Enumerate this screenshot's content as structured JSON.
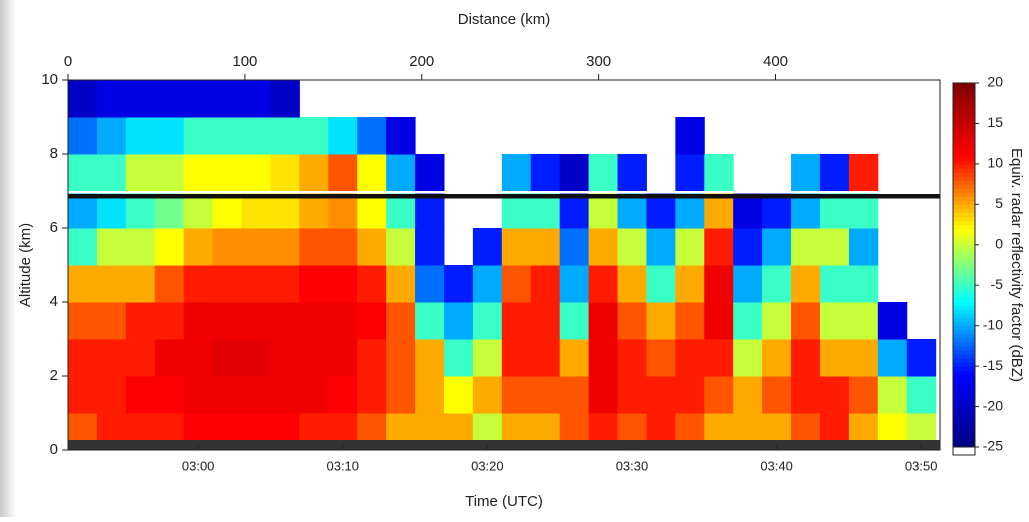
{
  "chart_data": {
    "type": "heatmap",
    "xlabel": "Time (UTC)",
    "x2label": "Distance (km)",
    "ylabel": "Altitude (km)",
    "colorbar_label": "Equiv. radar reflectivity factor (dBZ)",
    "xlim": [
      171,
      231.3
    ],
    "xticks": [
      {
        "value": 180,
        "label": "03:00"
      },
      {
        "value": 190,
        "label": "03:10"
      },
      {
        "value": 200,
        "label": "03:20"
      },
      {
        "value": 210,
        "label": "03:30"
      },
      {
        "value": 220,
        "label": "03:40"
      },
      {
        "value": 230,
        "label": "03:50"
      }
    ],
    "x2lim": [
      0,
      493
    ],
    "x2ticks": [
      0,
      100,
      200,
      300,
      400
    ],
    "ylim": [
      0,
      10
    ],
    "yticks": [
      0,
      2,
      4,
      6,
      8,
      10
    ],
    "clim": [
      -25,
      20
    ],
    "cticks": [
      -25,
      -20,
      -15,
      -10,
      -5,
      0,
      5,
      10,
      15,
      20
    ],
    "colormap": [
      "#00007f",
      "#0000ff",
      "#00ffff",
      "#ffff00",
      "#ff0000",
      "#7f0000"
    ],
    "under_color": "#ffffff",
    "x_bins": [
      171,
      173,
      175,
      177,
      179,
      181,
      183,
      185,
      187,
      189,
      191,
      193,
      195,
      197,
      199,
      201,
      203,
      205,
      207,
      209,
      211,
      213,
      215,
      217,
      219,
      221,
      223,
      225,
      227,
      229,
      231
    ],
    "y_bins": [
      0,
      1,
      2,
      3,
      4,
      5,
      6,
      7,
      8,
      9,
      10
    ],
    "values": [
      [
        8,
        10,
        10,
        10,
        11,
        11,
        11,
        11,
        10,
        10,
        8,
        5,
        5,
        5,
        0,
        5,
        5,
        8,
        10,
        8,
        10,
        8,
        5,
        5,
        5,
        8,
        10,
        5,
        2,
        0
      ],
      [
        10,
        10,
        11,
        11,
        12,
        12,
        12,
        12,
        12,
        11,
        10,
        8,
        5,
        2,
        5,
        8,
        8,
        8,
        12,
        10,
        10,
        10,
        8,
        5,
        8,
        10,
        10,
        8,
        0,
        -5
      ],
      [
        10,
        10,
        10,
        12,
        12,
        13,
        13,
        12,
        12,
        12,
        10,
        8,
        5,
        -5,
        0,
        10,
        10,
        5,
        12,
        10,
        8,
        10,
        10,
        0,
        5,
        10,
        5,
        5,
        -10,
        -15
      ],
      [
        8,
        8,
        10,
        10,
        12,
        12,
        12,
        12,
        12,
        12,
        11,
        8,
        -5,
        -10,
        -5,
        10,
        10,
        -5,
        12,
        8,
        5,
        8,
        12,
        -5,
        0,
        8,
        0,
        0,
        -18,
        null
      ],
      [
        5,
        5,
        5,
        8,
        10,
        10,
        10,
        10,
        11,
        11,
        10,
        5,
        -12,
        -15,
        -10,
        8,
        10,
        -10,
        10,
        5,
        -5,
        5,
        12,
        -10,
        -5,
        5,
        -5,
        -5,
        null,
        null
      ],
      [
        -5,
        0,
        0,
        2,
        5,
        6,
        6,
        6,
        8,
        8,
        5,
        0,
        -15,
        null,
        -15,
        5,
        5,
        -12,
        5,
        0,
        -10,
        0,
        10,
        -15,
        -10,
        0,
        0,
        -10,
        null,
        null
      ],
      [
        -10,
        -8,
        -5,
        -3,
        0,
        2,
        3,
        3,
        5,
        6,
        2,
        -5,
        -15,
        null,
        null,
        -5,
        -5,
        -15,
        0,
        -10,
        -15,
        -10,
        5,
        -18,
        -15,
        -10,
        -5,
        -5,
        null,
        null
      ],
      [
        -5,
        -5,
        0,
        0,
        2,
        2,
        2,
        3,
        5,
        8,
        2,
        -10,
        -18,
        null,
        null,
        -10,
        -15,
        -20,
        -5,
        -15,
        null,
        -15,
        -5,
        null,
        null,
        -10,
        -15,
        10,
        null,
        null
      ],
      [
        -12,
        -10,
        -8,
        -8,
        -5,
        -5,
        -5,
        -5,
        -5,
        -8,
        -12,
        -18,
        null,
        null,
        null,
        null,
        null,
        null,
        null,
        null,
        null,
        -18,
        null,
        null,
        null,
        null,
        null,
        null,
        null,
        null
      ],
      [
        -20,
        -18,
        -18,
        -18,
        -18,
        -18,
        -18,
        -20,
        null,
        null,
        null,
        null,
        null,
        null,
        null,
        null,
        null,
        null,
        null,
        null,
        null,
        null,
        null,
        null,
        null,
        null,
        null,
        null,
        null,
        null
      ]
    ]
  }
}
